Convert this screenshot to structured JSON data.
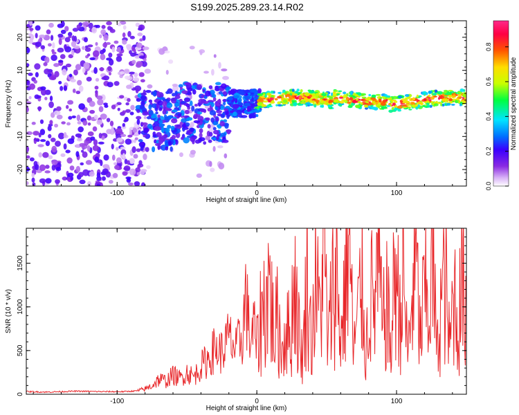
{
  "figure_title": "S199.2025.289.23.14.R02",
  "colors": {
    "snr_line": "#e8272a",
    "axis": "#000000",
    "background": "#ffffff",
    "colormap": [
      "#ffffff",
      "#d9b3f7",
      "#8a2be2",
      "#3a00ff",
      "#0070ff",
      "#00e5ff",
      "#00ff40",
      "#c8ff00",
      "#ffdd00",
      "#ff5500",
      "#ff0044",
      "#ff2a8a"
    ]
  },
  "chart_data": [
    {
      "type": "heatmap",
      "title": "",
      "xlabel": "Height of straight line (km)",
      "ylabel": "Frequency (Hz)",
      "xlim": [
        -165,
        150
      ],
      "ylim": [
        -25,
        25
      ],
      "xticks": [
        -100,
        0,
        100
      ],
      "yticks": [
        -20,
        -10,
        0,
        10,
        20
      ],
      "xtick_labels": [
        "-100",
        "0",
        "100"
      ],
      "ytick_labels": [
        "-20",
        "-10",
        "0",
        "10",
        "20"
      ],
      "description_segments": [
        {
          "x_range": [
            -165,
            -85
          ],
          "pattern": "scattered noise, amplitude 0.05-0.3"
        },
        {
          "x_range": [
            -85,
            -20
          ],
          "pattern": "broad signal band around -5 to 8 Hz, amplitude 0.2-0.4"
        },
        {
          "x_range": [
            -20,
            0
          ],
          "pattern": "band narrowing near 0 Hz"
        },
        {
          "x_range": [
            0,
            150
          ],
          "pattern": "narrow carrier near 0 to 2 Hz, amplitude up to 0.95"
        }
      ],
      "colorbar": {
        "label": "Normalized spectral amplitude",
        "range": [
          0,
          0.95
        ],
        "ticks": [
          0.0,
          0.2,
          0.4,
          0.6,
          0.8
        ],
        "tick_labels": [
          "0.0",
          "0.2",
          "0.4",
          "0.6",
          "0.8"
        ]
      }
    },
    {
      "type": "line",
      "title": "",
      "xlabel": "Height of straight line (km)",
      "ylabel": "SNR (10 * v/v)",
      "xlim": [
        -165,
        150
      ],
      "ylim": [
        0,
        1900
      ],
      "xticks": [
        -100,
        0,
        100
      ],
      "yticks": [
        0,
        500,
        1000,
        1500
      ],
      "xtick_labels": [
        "-100",
        "0",
        "100"
      ],
      "ytick_labels": [
        "0",
        "500",
        "1000",
        "1500"
      ],
      "series": [
        {
          "name": "SNR",
          "x": [
            -165,
            -150,
            -130,
            -110,
            -95,
            -85,
            -80,
            -75,
            -70,
            -65,
            -60,
            -55,
            -50,
            -45,
            -40,
            -35,
            -30,
            -25,
            -20,
            -15,
            -10,
            -8,
            -5,
            -2,
            0,
            3,
            6,
            9,
            12,
            15,
            18,
            21,
            24,
            27,
            30,
            33,
            36,
            39,
            42,
            45,
            48,
            51,
            54,
            57,
            60,
            63,
            66,
            69,
            72,
            75,
            78,
            81,
            84,
            87,
            90,
            93,
            96,
            99,
            102,
            105,
            108,
            111,
            114,
            117,
            120,
            123,
            126,
            129,
            132,
            135,
            138,
            141,
            144,
            147,
            150
          ],
          "y": [
            30,
            25,
            35,
            30,
            30,
            40,
            60,
            100,
            170,
            150,
            220,
            180,
            250,
            200,
            320,
            400,
            520,
            480,
            650,
            500,
            700,
            1150,
            620,
            780,
            500,
            900,
            1050,
            1300,
            700,
            850,
            500,
            800,
            600,
            1400,
            700,
            400,
            1450,
            600,
            1300,
            900,
            1800,
            500,
            1200,
            1400,
            600,
            1150,
            1900,
            500,
            800,
            1350,
            450,
            1200,
            950,
            1500,
            700,
            1100,
            450,
            1550,
            900,
            1350,
            400,
            1100,
            1450,
            600,
            1200,
            900,
            1550,
            450,
            1100,
            1300,
            500,
            1250,
            750,
            1300,
            1050
          ]
        }
      ]
    }
  ]
}
